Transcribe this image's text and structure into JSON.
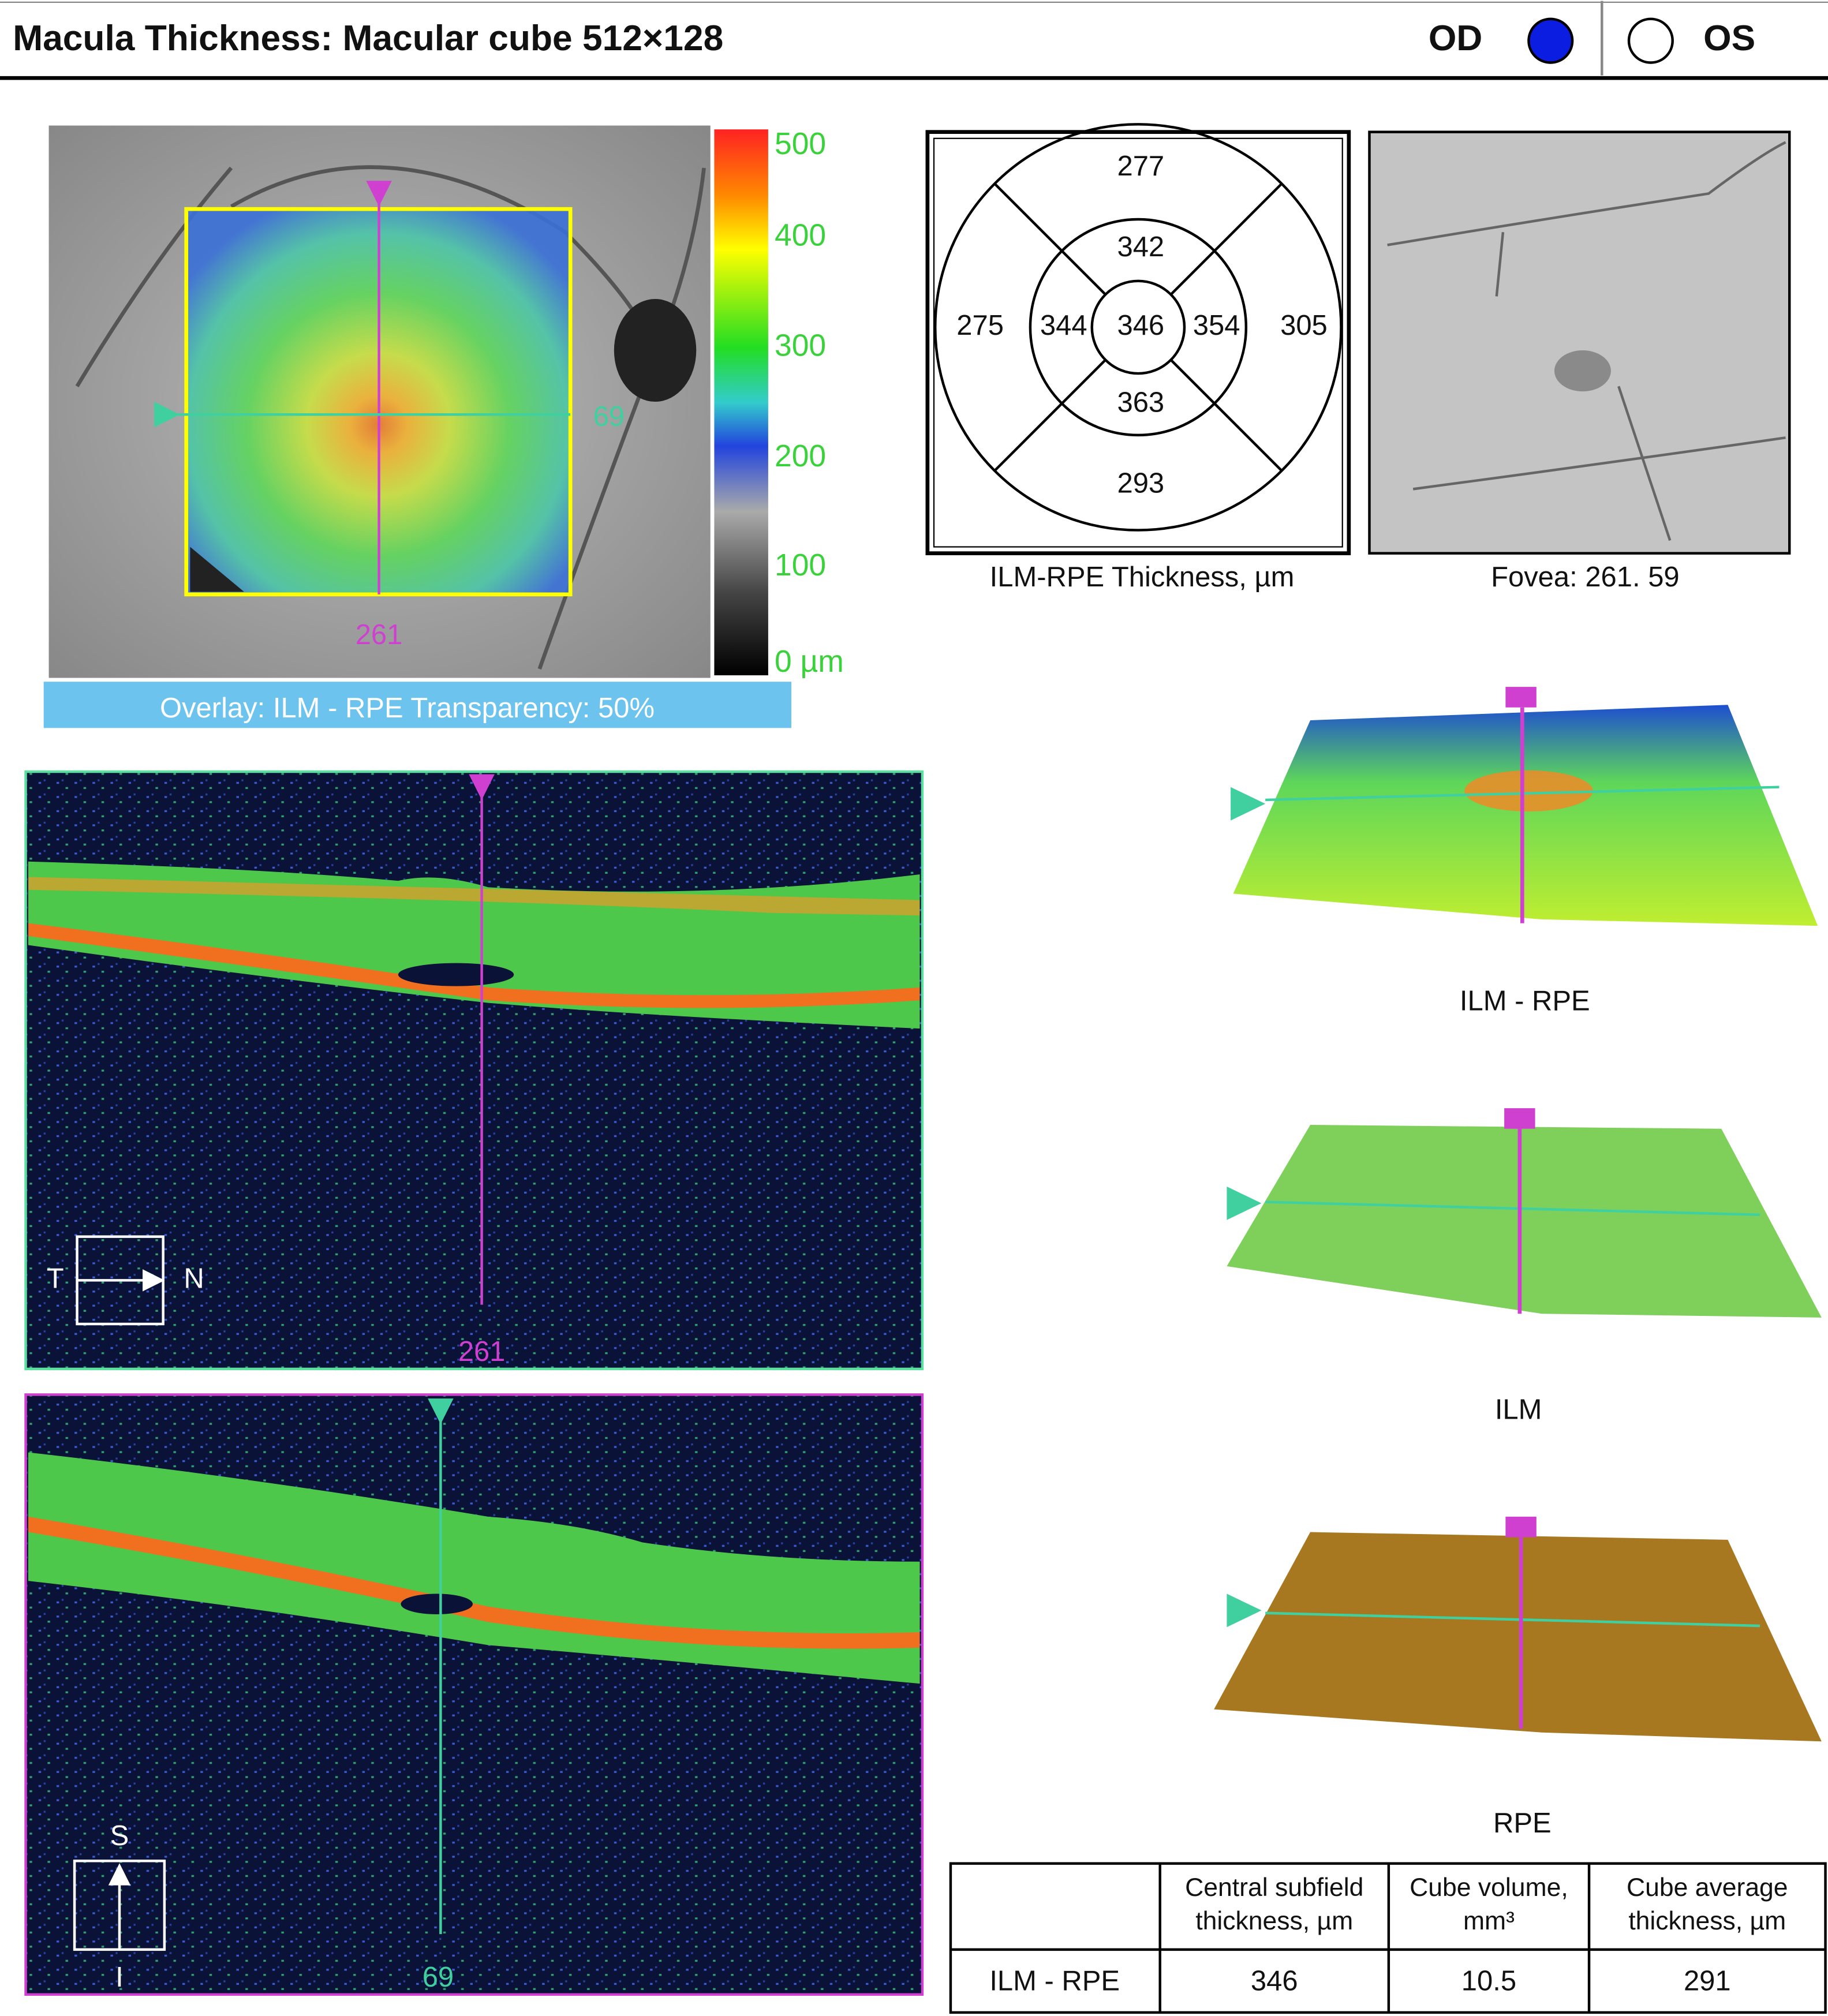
{
  "header": {
    "title": "Macula Thickness: Macular cube 512×128",
    "od": "OD",
    "os": "OS"
  },
  "fundus": {
    "scale_labels": [
      "500",
      "400",
      "300",
      "200",
      "100",
      "0 µm"
    ],
    "vertical_marker": "261",
    "horizontal_marker": "69",
    "overlay": "Overlay: ILM - RPE Transparency: 50%"
  },
  "etdrs": {
    "outer_superior": 277,
    "inner_superior": 342,
    "outer_temporal": 275,
    "inner_temporal": 344,
    "central": 346,
    "inner_nasal": 354,
    "outer_nasal": 305,
    "inner_inferior": 363,
    "outer_inferior": 293,
    "caption": "ILM-RPE Thickness, µm"
  },
  "fovea": {
    "caption": "Fovea: 261. 59"
  },
  "bscan_horizontal": {
    "left": "T",
    "right": "N",
    "marker": "261"
  },
  "bscan_vertical": {
    "top": "S",
    "bottom": "I",
    "marker": "69"
  },
  "surfaces": {
    "ilm_rpe": "ILM - RPE",
    "ilm": "ILM",
    "rpe": "RPE"
  },
  "table": {
    "headers": [
      [
        "Central subfield",
        "thickness, µm"
      ],
      [
        "Cube volume,",
        "mm³"
      ],
      [
        "Cube average",
        "thickness, µm"
      ]
    ],
    "rows": [
      [
        "ILM - RPE",
        346,
        10.5,
        291
      ]
    ]
  }
}
